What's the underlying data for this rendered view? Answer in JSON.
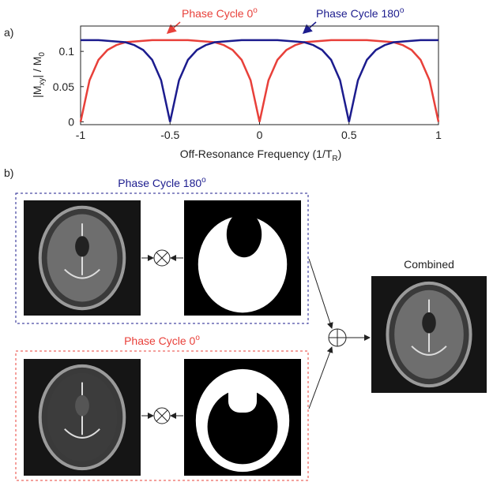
{
  "chart_data": {
    "type": "line",
    "panel_label": "a)",
    "xlabel": [
      "Off-Resonance Frequency (1/T",
      "R",
      ")"
    ],
    "ylabel": [
      "|M",
      "xy",
      "| / M",
      "0"
    ],
    "x": [
      -1,
      -0.95,
      -0.9,
      -0.85,
      -0.8,
      -0.75,
      -0.7,
      -0.65,
      -0.6,
      -0.55,
      -0.5,
      -0.45,
      -0.4,
      -0.35,
      -0.3,
      -0.25,
      -0.2,
      -0.15,
      -0.1,
      -0.05,
      0,
      0.05,
      0.1,
      0.15,
      0.2,
      0.25,
      0.3,
      0.35,
      0.4,
      0.45,
      0.5,
      0.55,
      0.6,
      0.65,
      0.7,
      0.75,
      0.8,
      0.85,
      0.9,
      0.95,
      1
    ],
    "xlim": [
      -1,
      1
    ],
    "xticks": [
      -1,
      -0.5,
      0,
      0.5,
      1
    ],
    "ylim": [
      -0.004,
      0.136
    ],
    "yticks": [
      0,
      0.05,
      0.1
    ],
    "series": [
      {
        "name": [
          "Phase Cycle 0",
          "o"
        ],
        "color": "#e8403a",
        "values": [
          0,
          0.059,
          0.088,
          0.102,
          0.109,
          0.113,
          0.114,
          0.115,
          0.116,
          0.116,
          0.116,
          0.116,
          0.116,
          0.115,
          0.114,
          0.113,
          0.109,
          0.102,
          0.088,
          0.059,
          0,
          0.059,
          0.088,
          0.102,
          0.109,
          0.113,
          0.114,
          0.115,
          0.116,
          0.116,
          0.116,
          0.116,
          0.116,
          0.115,
          0.114,
          0.113,
          0.109,
          0.102,
          0.088,
          0.059,
          0
        ]
      },
      {
        "name": [
          "Phase Cycle 180",
          "o"
        ],
        "color": "#1c1c8e",
        "values": [
          0.116,
          0.116,
          0.116,
          0.115,
          0.114,
          0.113,
          0.109,
          0.102,
          0.088,
          0.059,
          0,
          0.059,
          0.088,
          0.102,
          0.109,
          0.113,
          0.114,
          0.115,
          0.116,
          0.116,
          0.116,
          0.116,
          0.116,
          0.115,
          0.114,
          0.113,
          0.109,
          0.102,
          0.088,
          0.059,
          0,
          0.059,
          0.088,
          0.102,
          0.109,
          0.113,
          0.114,
          0.115,
          0.116,
          0.116,
          0.116
        ]
      }
    ]
  },
  "diagram": {
    "panel_label": "b)",
    "groups": [
      {
        "title": [
          "Phase Cycle 180",
          "o"
        ],
        "color": "#1c1c8e"
      },
      {
        "title": [
          "Phase Cycle 0",
          "o"
        ],
        "color": "#e8403a"
      }
    ],
    "combined_label": "Combined"
  }
}
